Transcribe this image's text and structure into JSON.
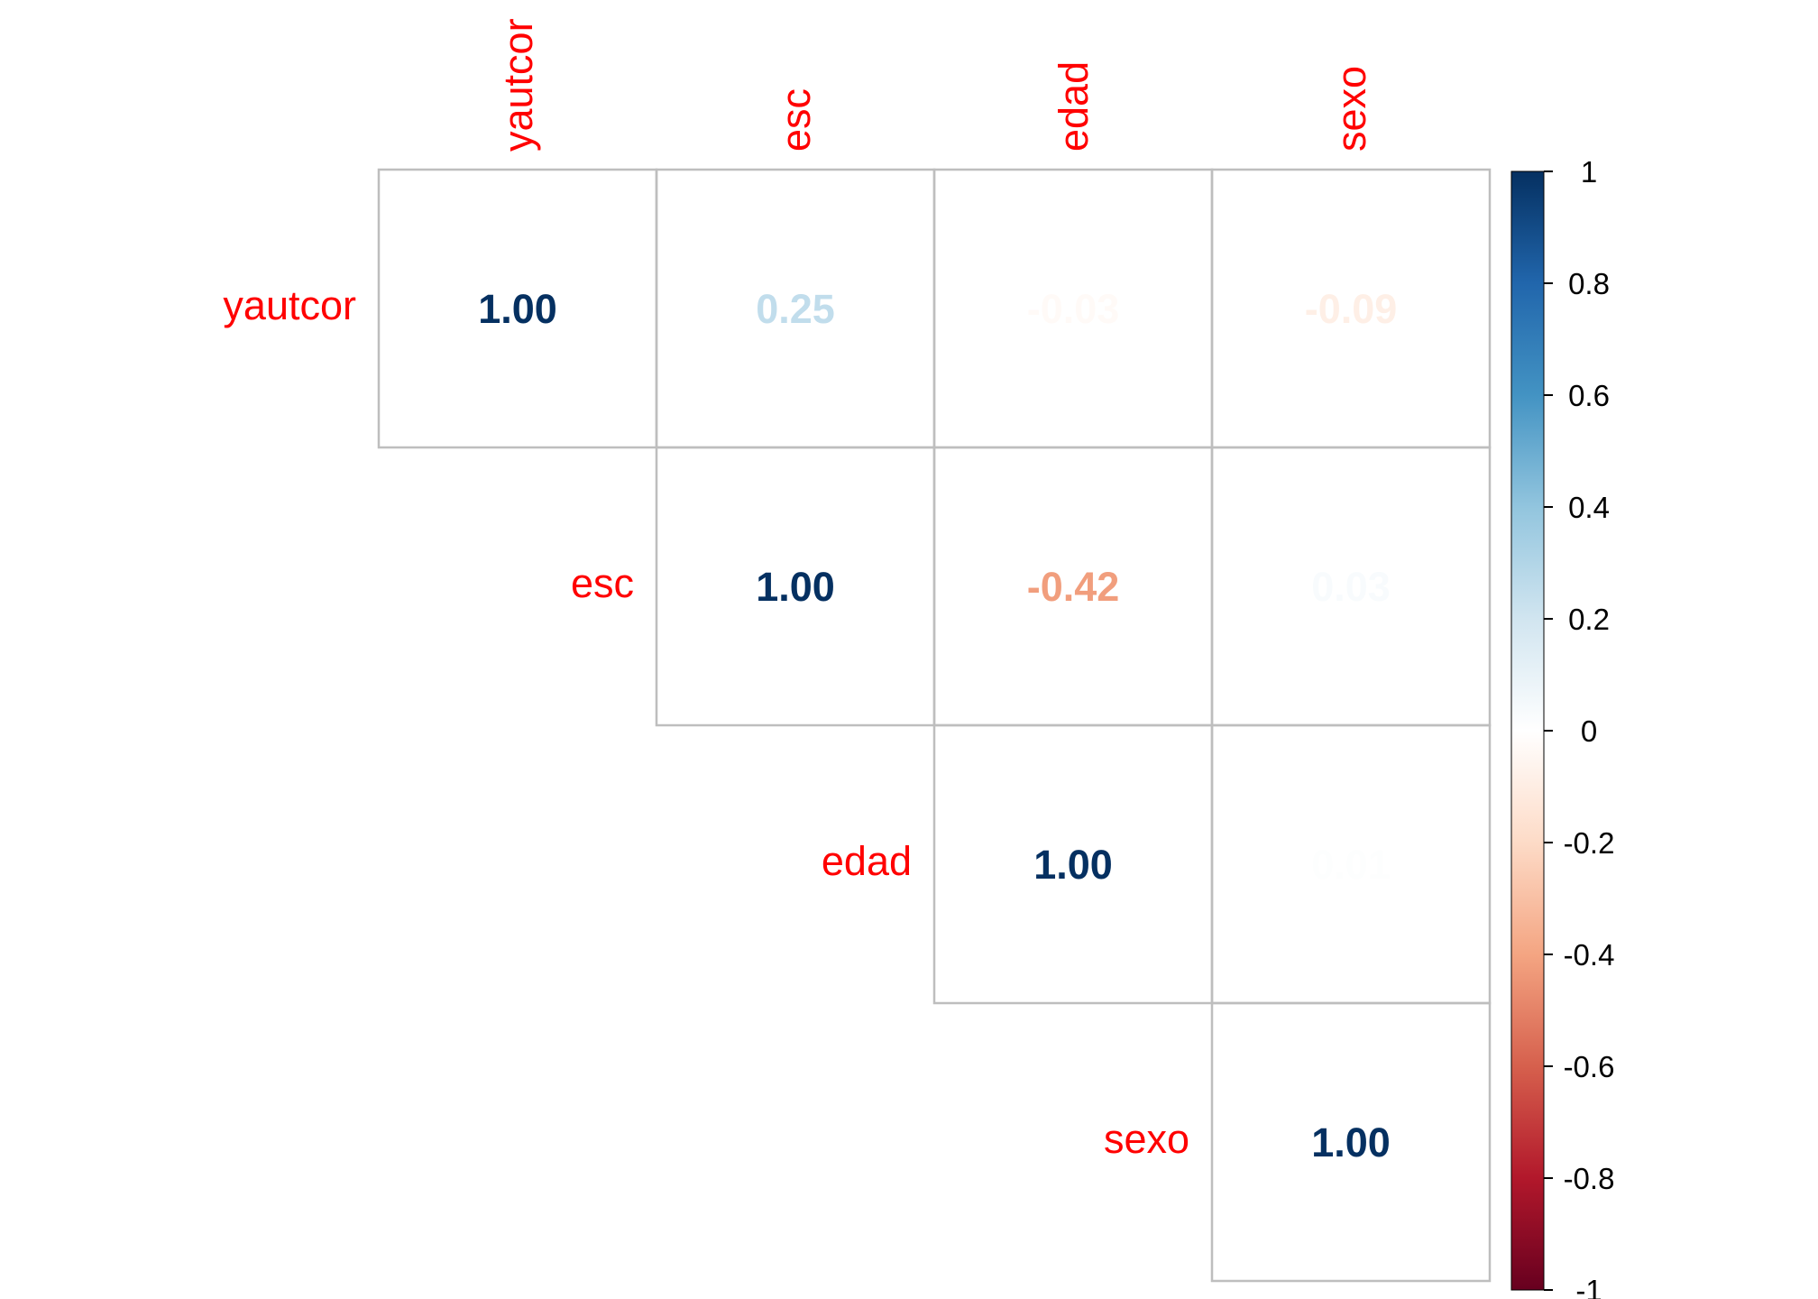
{
  "chart_data": {
    "type": "heatmap",
    "variables": [
      "yautcor",
      "esc",
      "edad",
      "sexo"
    ],
    "layout": "upper-triangle",
    "matrix": [
      [
        1.0,
        0.25,
        -0.03,
        -0.09
      ],
      [
        null,
        1.0,
        -0.42,
        0.03
      ],
      [
        null,
        null,
        1.0,
        0.01
      ],
      [
        null,
        null,
        null,
        1.0
      ]
    ],
    "value_labels": [
      [
        "1.00",
        "0.25",
        "-0.03",
        "-0.09"
      ],
      [
        null,
        "1.00",
        "-0.42",
        "0.03"
      ],
      [
        null,
        null,
        "1.00",
        "0.01"
      ],
      [
        null,
        null,
        null,
        "1.00"
      ]
    ],
    "colorbar": {
      "range": [
        -1,
        1
      ],
      "ticks": [
        "1",
        "0.8",
        "0.6",
        "0.4",
        "0.2",
        "0",
        "-0.2",
        "-0.4",
        "-0.6",
        "-0.8",
        "-1"
      ]
    },
    "label_color": "#ff0000",
    "grid_color": "#bebebe",
    "palette": [
      "#67001f",
      "#b2182b",
      "#d6604d",
      "#f4a582",
      "#fddbc7",
      "#ffffff",
      "#d1e5f0",
      "#92c5de",
      "#4393c3",
      "#2166ac",
      "#053061"
    ]
  }
}
